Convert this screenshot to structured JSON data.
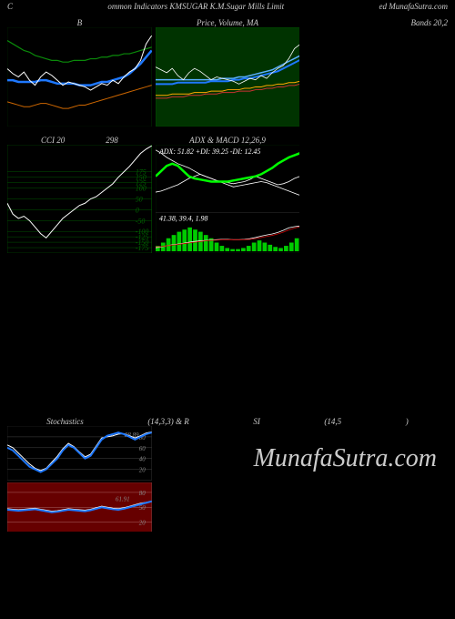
{
  "header": {
    "left": "C",
    "center": "ommon Indicators KMSUGAR K.M.Sugar Mills Limit",
    "right": "ed MunafaSutra.com"
  },
  "row1_titles": [
    "B",
    "Price, Volume, MA",
    "Bands 20,2"
  ],
  "row2_titles": [
    "CCI 20",
    "ADX & MACD 12,26,9"
  ],
  "stoch_title": {
    "left": "Stochastics",
    "mid": "(14,3,3) & R",
    "right": "SI",
    "params": "(14,5",
    "end": ")"
  },
  "watermark": "MunafaSutra.com",
  "panels": {
    "bollinger": {
      "bg": "#000",
      "border": "#003300",
      "white": [
        35,
        32,
        30,
        33,
        28,
        25,
        30,
        33,
        31,
        28,
        25,
        27,
        26,
        25,
        24,
        22,
        24,
        26,
        25,
        28,
        26,
        30,
        33,
        35,
        40,
        50,
        55
      ],
      "blue": [
        28,
        28,
        27,
        27,
        27,
        27,
        28,
        28,
        27,
        26,
        26,
        26,
        26,
        25,
        25,
        25,
        26,
        27,
        27,
        28,
        29,
        30,
        32,
        35,
        38,
        42,
        46
      ],
      "green": [
        52,
        50,
        48,
        46,
        45,
        43,
        42,
        41,
        40,
        40,
        39,
        39,
        40,
        40,
        40,
        41,
        41,
        42,
        42,
        43,
        43,
        44,
        44,
        45,
        46,
        47,
        48
      ],
      "orange": [
        15,
        14,
        13,
        12,
        12,
        13,
        14,
        14,
        13,
        12,
        11,
        11,
        12,
        13,
        13,
        14,
        15,
        16,
        17,
        18,
        19,
        20,
        21,
        22,
        23,
        24,
        25
      ],
      "colors": {
        "white": "#fff",
        "blue": "#1e78ff",
        "green": "#0a8a0a",
        "orange": "#cc6600"
      }
    },
    "price": {
      "bg": "#003300",
      "border": "#006600",
      "white": [
        42,
        40,
        38,
        41,
        36,
        33,
        38,
        41,
        39,
        36,
        33,
        35,
        34,
        33,
        32,
        30,
        32,
        34,
        33,
        36,
        34,
        38,
        41,
        43,
        48,
        55,
        58
      ],
      "blue": [
        30,
        30,
        30,
        30,
        31,
        31,
        31,
        31,
        31,
        31,
        32,
        32,
        32,
        32,
        33,
        33,
        34,
        34,
        35,
        36,
        37,
        38,
        39,
        41,
        43,
        45,
        47
      ],
      "lightblue": [
        33,
        33,
        33,
        33,
        33,
        33,
        33,
        33,
        33,
        33,
        33,
        33,
        34,
        34,
        34,
        35,
        35,
        36,
        37,
        38,
        39,
        40,
        42,
        44,
        46,
        48,
        50
      ],
      "orange": [
        22,
        22,
        22,
        23,
        23,
        23,
        23,
        24,
        24,
        24,
        25,
        25,
        25,
        26,
        26,
        26,
        27,
        27,
        28,
        28,
        29,
        29,
        30,
        30,
        31,
        31,
        32
      ],
      "red": [
        20,
        20,
        20,
        21,
        21,
        21,
        22,
        22,
        22,
        23,
        23,
        23,
        24,
        24,
        24,
        25,
        25,
        25,
        26,
        26,
        27,
        27,
        28,
        28,
        29,
        29,
        30
      ],
      "colors": {
        "white": "#fff",
        "blue": "#1e78ff",
        "lightblue": "#5ab0ff",
        "orange": "#ffaa00",
        "red": "#cc3333"
      }
    },
    "cci": {
      "bg": "#000",
      "border": "#006600",
      "gridcolor": "#005500",
      "title_val": "298",
      "grid": [
        175,
        150,
        125,
        100,
        50,
        0,
        -50,
        -100,
        -125,
        -150,
        -175
      ],
      "line": [
        30,
        -20,
        -40,
        -30,
        -50,
        -80,
        -110,
        -130,
        -100,
        -70,
        -40,
        -20,
        0,
        20,
        30,
        50,
        60,
        80,
        100,
        120,
        150,
        175,
        200,
        230,
        260,
        280,
        295
      ],
      "color": "#fff"
    },
    "adx": {
      "bg": "#000",
      "border": "#003300",
      "text1": "ADX: 51.82 +DI: 39.25 -DI: 12.45",
      "text2": "41.38, 39.4, 1.98",
      "green": [
        30,
        35,
        40,
        42,
        40,
        35,
        30,
        28,
        27,
        26,
        25,
        25,
        25,
        25,
        26,
        27,
        28,
        29,
        30,
        32,
        35,
        38,
        42,
        45,
        48,
        50,
        52
      ],
      "white1": [
        55,
        52,
        48,
        45,
        42,
        40,
        38,
        35,
        32,
        30,
        28,
        26,
        25,
        24,
        23,
        24,
        25,
        27,
        30,
        28,
        26,
        24,
        22,
        23,
        25,
        28,
        30
      ],
      "white2": [
        15,
        16,
        18,
        20,
        22,
        25,
        28,
        30,
        32,
        30,
        28,
        26,
        24,
        22,
        20,
        21,
        22,
        23,
        24,
        25,
        24,
        22,
        20,
        18,
        16,
        14,
        12
      ],
      "hist": [
        5,
        8,
        12,
        15,
        18,
        20,
        22,
        20,
        18,
        15,
        12,
        8,
        5,
        3,
        2,
        2,
        3,
        5,
        8,
        10,
        8,
        6,
        4,
        3,
        5,
        8,
        12
      ],
      "macd_white": [
        -20,
        -18,
        -15,
        -12,
        -10,
        -8,
        -5,
        -3,
        -1,
        0,
        1,
        2,
        3,
        3,
        2,
        2,
        3,
        5,
        8,
        12,
        15,
        18,
        22,
        28,
        35,
        38,
        40
      ],
      "macd_red": [
        -18,
        -17,
        -15,
        -13,
        -11,
        -9,
        -7,
        -5,
        -3,
        -1,
        0,
        1,
        2,
        2,
        2,
        2,
        2,
        3,
        5,
        8,
        11,
        14,
        18,
        23,
        29,
        34,
        38
      ],
      "colors": {
        "green": "#00ff00",
        "white": "#fff",
        "red": "#cc0000",
        "hist": "#00cc00"
      }
    },
    "stoch": {
      "bg": "#000",
      "border": "#333",
      "gridcolor": "#444",
      "grid": [
        80,
        60,
        40,
        20
      ],
      "label": "88.89",
      "blue": [
        60,
        55,
        45,
        35,
        25,
        20,
        15,
        20,
        30,
        40,
        55,
        65,
        60,
        50,
        40,
        45,
        60,
        75,
        82,
        85,
        88,
        85,
        80,
        75,
        80,
        85,
        88
      ],
      "white": [
        65,
        60,
        50,
        40,
        30,
        22,
        18,
        22,
        33,
        44,
        58,
        68,
        62,
        52,
        43,
        48,
        63,
        78,
        80,
        82,
        85,
        86,
        82,
        78,
        82,
        87,
        89
      ],
      "colors": {
        "blue": "#1e78ff",
        "white": "#fff"
      }
    },
    "rsi": {
      "bg": "#660000",
      "border": "#884444",
      "gridcolor": "#aa6666",
      "grid": [
        80,
        50,
        20
      ],
      "label": "61.91",
      "blue": [
        45,
        44,
        43,
        44,
        45,
        46,
        44,
        42,
        40,
        41,
        43,
        45,
        44,
        43,
        42,
        44,
        47,
        50,
        48,
        46,
        45,
        47,
        50,
        53,
        56,
        59,
        62
      ],
      "white": [
        47,
        46,
        45,
        46,
        47,
        48,
        46,
        44,
        42,
        43,
        45,
        47,
        46,
        45,
        44,
        46,
        49,
        52,
        50,
        48,
        47,
        49,
        52,
        55,
        58,
        60,
        62
      ],
      "colors": {
        "blue": "#1e78ff",
        "white": "#fff"
      }
    }
  }
}
